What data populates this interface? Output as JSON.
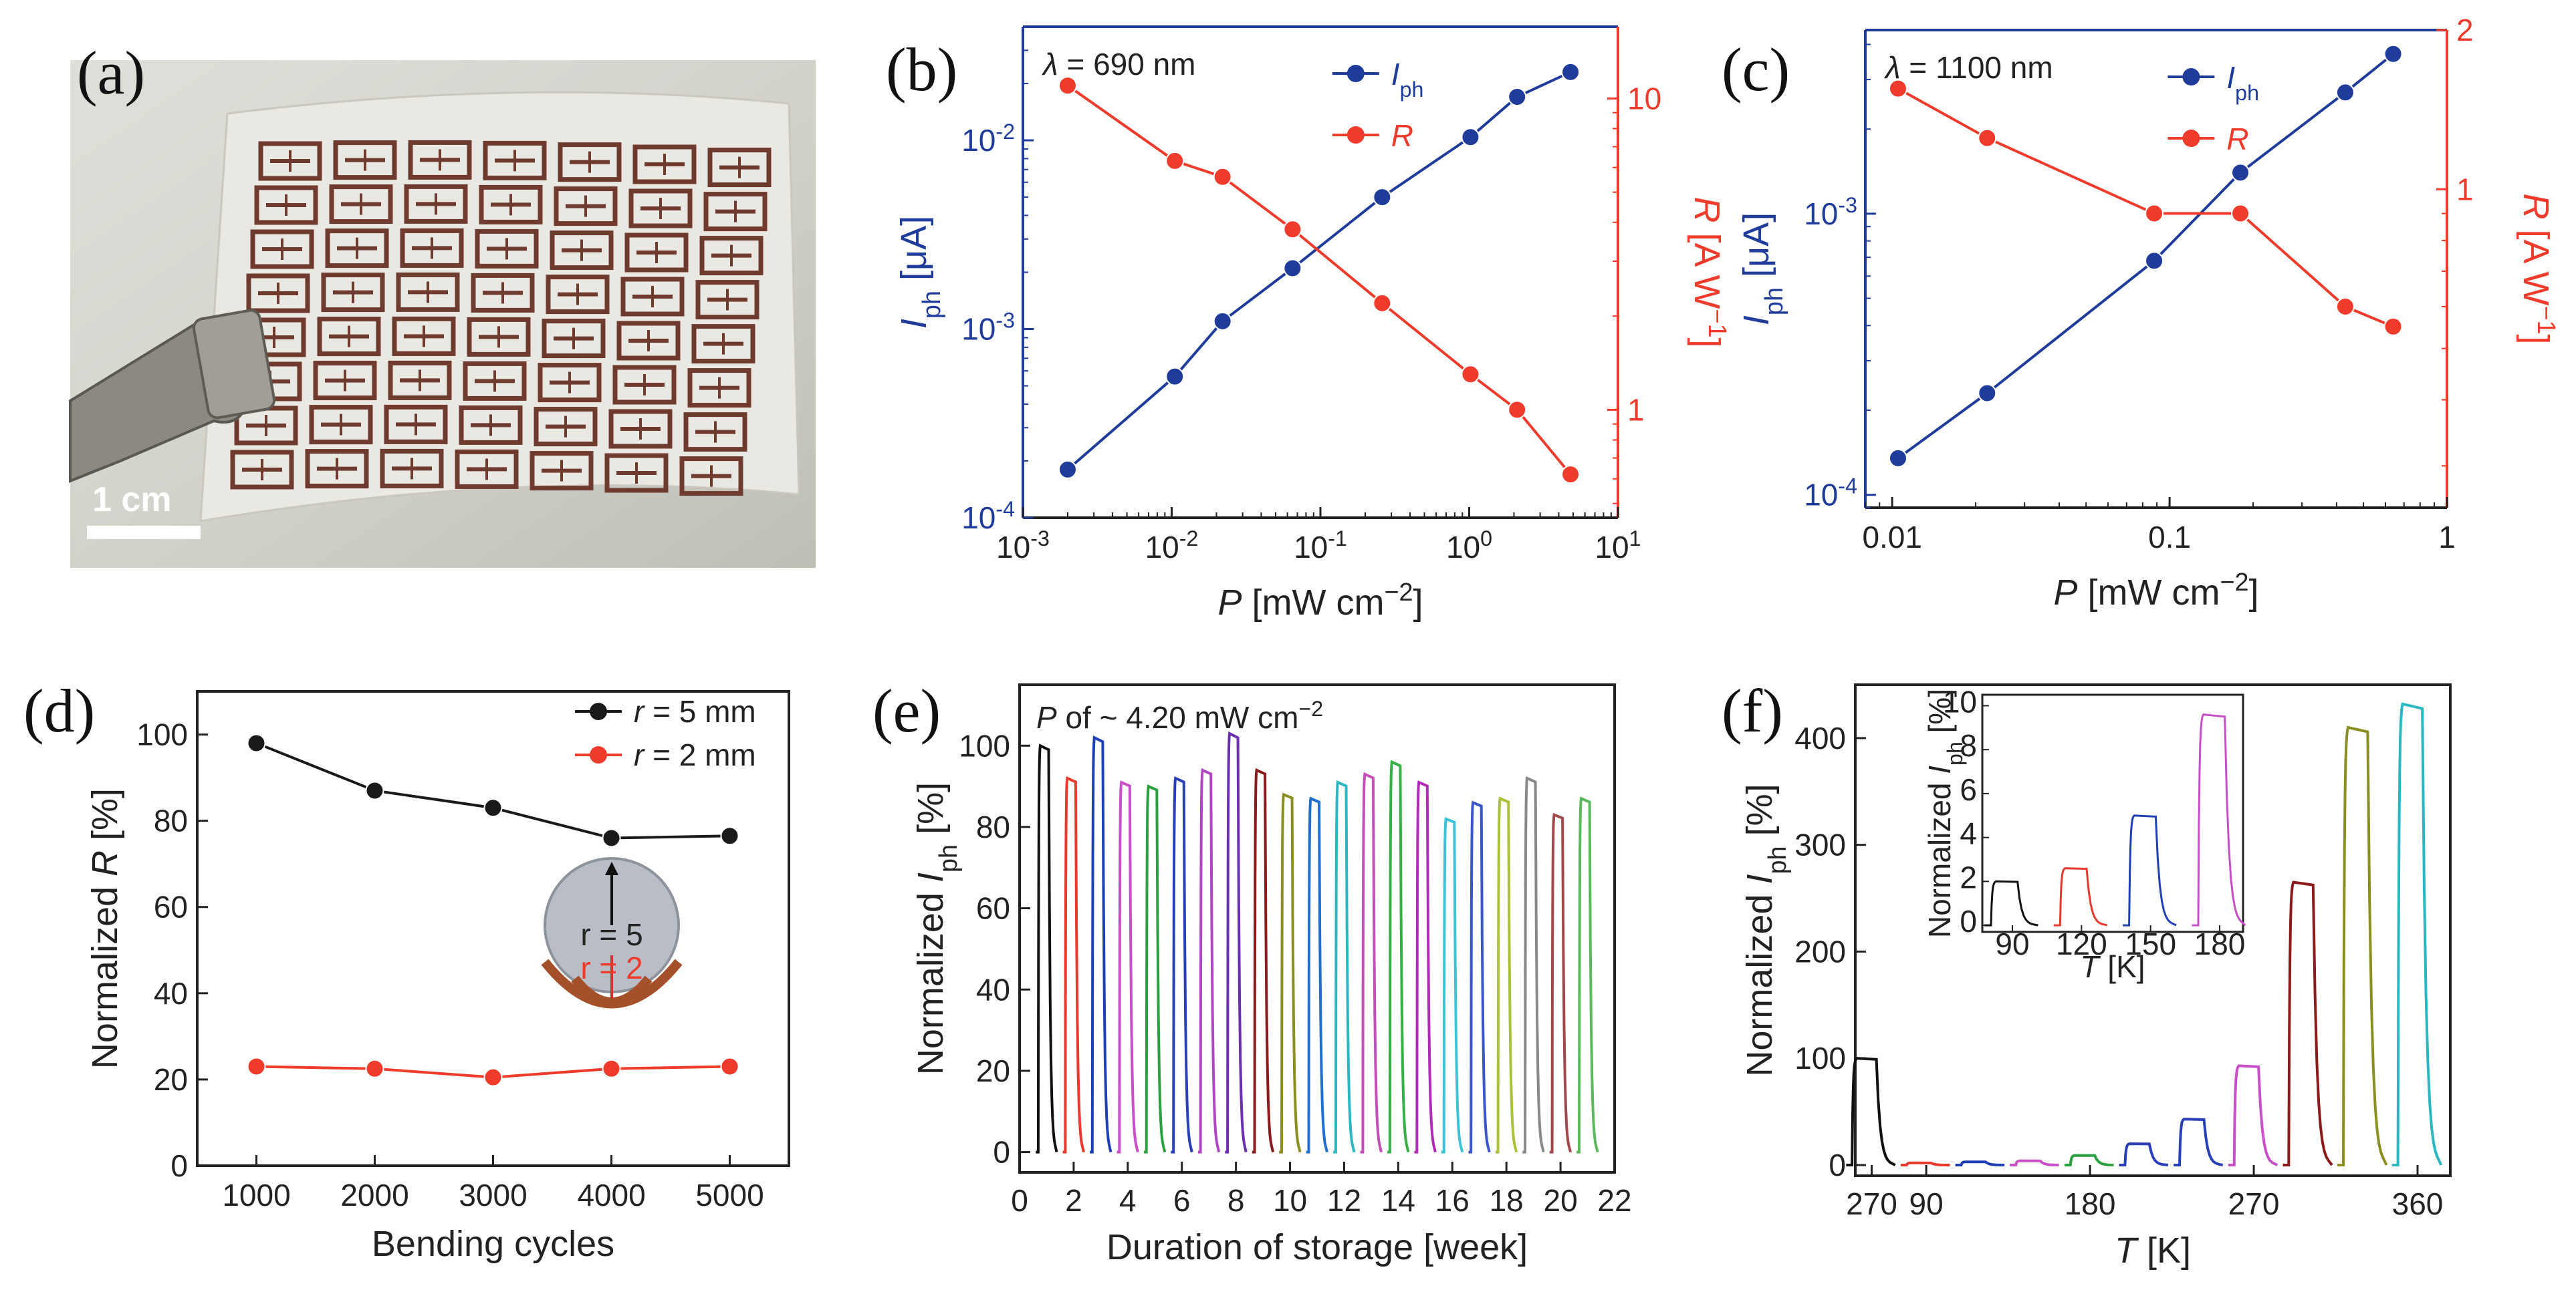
{
  "colors": {
    "blue": "#1f3c9a",
    "red": "#ef3b2c",
    "black": "#1a1a1a"
  },
  "panel_labels": [
    "(a)",
    "(b)",
    "(c)",
    "(d)",
    "(e)",
    "(f)"
  ],
  "photo": {
    "scale_label": "1 cm",
    "description_icon": "flexible-photodetector-array-photo"
  },
  "chart_data": [
    {
      "id": "b",
      "type": "line",
      "title": "",
      "annotation_html": "λ = 690 nm",
      "annotation": {
        "symbol": "λ",
        "text": " = 690 nm"
      },
      "xlabel": {
        "var": "P",
        "rest": " [mW cm",
        "sup": "−2",
        "end": "]"
      },
      "ylabel_left": {
        "var": "I",
        "sub": "ph",
        "rest": " [μA]"
      },
      "ylabel_right": {
        "var": "R",
        "rest": " [A W",
        "sup": "−1",
        "end": "]"
      },
      "xscale": "log",
      "xlim": [
        0.001,
        10
      ],
      "x_ticks": [
        {
          "b": "10",
          "e": "-3"
        },
        {
          "b": "10",
          "e": "-2"
        },
        {
          "b": "10",
          "e": "-1"
        },
        {
          "b": "10",
          "e": "0"
        },
        {
          "b": "10",
          "e": "1"
        }
      ],
      "yleft_ticks": [
        {
          "b": "10",
          "e": "-4"
        },
        {
          "b": "10",
          "e": "-3"
        },
        {
          "b": "10",
          "e": "-2"
        }
      ],
      "yright_ticks": [
        "1",
        "10"
      ],
      "legend": [
        {
          "var": "I",
          "sub": "ph"
        },
        {
          "var": "R",
          "sub": ""
        }
      ],
      "series": [
        {
          "name": "Iph",
          "axis": "left",
          "ylim": [
            0.0001,
            0.04
          ],
          "x": [
            0.002,
            0.0105,
            0.022,
            0.065,
            0.26,
            1.02,
            2.1,
            4.8
          ],
          "y": [
            0.00018,
            0.00056,
            0.0011,
            0.0021,
            0.005,
            0.0104,
            0.017,
            0.023
          ]
        },
        {
          "name": "R",
          "axis": "right",
          "ylim": [
            0.45,
            17
          ],
          "x": [
            0.002,
            0.0105,
            0.022,
            0.065,
            0.26,
            1.02,
            2.1,
            4.8
          ],
          "y": [
            11.0,
            6.3,
            5.6,
            3.8,
            2.2,
            1.3,
            1.0,
            0.62
          ]
        }
      ]
    },
    {
      "id": "c",
      "type": "line",
      "annotation": {
        "symbol": "λ",
        "text": " = 1100 nm"
      },
      "xlabel": {
        "var": "P",
        "rest": " [mW cm",
        "sup": "−2",
        "end": "]"
      },
      "ylabel_left": {
        "var": "I",
        "sub": "ph",
        "rest": " [μA]"
      },
      "ylabel_right": {
        "var": "R",
        "rest": " [A W",
        "sup": "−1",
        "end": "]"
      },
      "xscale": "log",
      "xlim": [
        0.008,
        1
      ],
      "x_ticks": [
        {
          "v": 0.01,
          "t": "0.01"
        },
        {
          "v": 0.1,
          "t": "0.1"
        },
        {
          "v": 1,
          "t": "1"
        }
      ],
      "yleft_ticks": [
        {
          "b": "10",
          "e": "-4"
        },
        {
          "b": "10",
          "e": "-3"
        }
      ],
      "yright_ticks": [
        "1",
        "2"
      ],
      "legend": [
        {
          "var": "I",
          "sub": "ph"
        },
        {
          "var": "R",
          "sub": ""
        }
      ],
      "series": [
        {
          "name": "Iph",
          "axis": "left",
          "ylim": [
            9e-05,
            0.0045
          ],
          "x": [
            0.0105,
            0.022,
            0.088,
            0.18,
            0.43,
            0.64
          ],
          "y": [
            0.000135,
            0.00023,
            0.00068,
            0.0014,
            0.0027,
            0.0037
          ]
        },
        {
          "name": "R",
          "axis": "right",
          "ylim": [
            0.25,
            2.0
          ],
          "x": [
            0.0105,
            0.022,
            0.088,
            0.18,
            0.43,
            0.64
          ],
          "y": [
            1.55,
            1.25,
            0.9,
            0.9,
            0.6,
            0.55
          ]
        }
      ]
    },
    {
      "id": "d",
      "type": "line",
      "xlabel": "Bending cycles",
      "ylabel": {
        "pre": "Normalized ",
        "var": "R",
        "rest": " [%]"
      },
      "xlim": [
        500,
        5500
      ],
      "ylim": [
        0,
        110
      ],
      "x_ticks": [
        1000,
        2000,
        3000,
        4000,
        5000
      ],
      "y_ticks": [
        0,
        20,
        40,
        60,
        80,
        100
      ],
      "legend": [
        {
          "pre": "r",
          "rest": " = 5 mm"
        },
        {
          "pre": "r",
          "rest": " = 2 mm"
        }
      ],
      "inset_labels": {
        "big": "r = 5",
        "small": "r = 2"
      },
      "series": [
        {
          "name": "r = 5 mm",
          "color": "#1a1a1a",
          "x": [
            1000,
            2000,
            3000,
            4000,
            5000
          ],
          "y": [
            98,
            87,
            83,
            76,
            76.5
          ]
        },
        {
          "name": "r = 2 mm",
          "color": "#ef3b2c",
          "x": [
            1000,
            2000,
            3000,
            4000,
            5000
          ],
          "y": [
            23,
            22.5,
            20.5,
            22.5,
            23
          ]
        }
      ]
    },
    {
      "id": "e",
      "type": "line",
      "annotation": {
        "var": "P",
        "rest": " of ~ 4.20 mW cm",
        "sup": "−2"
      },
      "xlabel": "Duration of storage [week]",
      "ylabel": {
        "pre": "Normalized ",
        "var": "I",
        "sub": "ph",
        "rest": " [%]"
      },
      "xlim": [
        0,
        22
      ],
      "ylim": [
        -5,
        115
      ],
      "x_ticks": [
        0,
        2,
        4,
        6,
        8,
        10,
        12,
        14,
        16,
        18,
        20,
        22
      ],
      "y_ticks": [
        0,
        20,
        40,
        60,
        80,
        100
      ],
      "pulses": [
        {
          "week": 1,
          "peak": 100,
          "color": "#111111"
        },
        {
          "week": 2,
          "peak": 92,
          "color": "#e8392e"
        },
        {
          "week": 3,
          "peak": 102,
          "color": "#1f3fb5"
        },
        {
          "week": 4,
          "peak": 91,
          "color": "#c94fc9"
        },
        {
          "week": 5,
          "peak": 90,
          "color": "#2aa040"
        },
        {
          "week": 6,
          "peak": 92,
          "color": "#2940b8"
        },
        {
          "week": 7,
          "peak": 94,
          "color": "#b146c4"
        },
        {
          "week": 8,
          "peak": 103,
          "color": "#6b2fb0"
        },
        {
          "week": 9,
          "peak": 94,
          "color": "#8b1a1a"
        },
        {
          "week": 10,
          "peak": 88,
          "color": "#8a8f1f"
        },
        {
          "week": 11,
          "peak": 87,
          "color": "#1e6fd0"
        },
        {
          "week": 12,
          "peak": 91,
          "color": "#2ab7c2"
        },
        {
          "week": 13,
          "peak": 93,
          "color": "#c44fb8"
        },
        {
          "week": 14,
          "peak": 96,
          "color": "#35b045"
        },
        {
          "week": 15,
          "peak": 91,
          "color": "#b12bb8"
        },
        {
          "week": 16,
          "peak": 82,
          "color": "#3cc4d6"
        },
        {
          "week": 17,
          "peak": 86,
          "color": "#3a56c8"
        },
        {
          "week": 18,
          "peak": 87,
          "color": "#a8c23a"
        },
        {
          "week": 19,
          "peak": 92,
          "color": "#888888"
        },
        {
          "week": 20,
          "peak": 83,
          "color": "#a0484a"
        },
        {
          "week": 21,
          "peak": 87,
          "color": "#5cb85c"
        }
      ]
    },
    {
      "id": "f",
      "type": "line",
      "xlabel": {
        "var": "T",
        "rest": " [K]"
      },
      "ylabel": {
        "pre": "Normalized ",
        "var": "I",
        "sub": "ph",
        "rest": " [%]"
      },
      "ylim": [
        -10,
        450
      ],
      "x_tick_labels": [
        "270",
        "90",
        "180",
        "270",
        "360"
      ],
      "y_ticks": [
        0,
        100,
        200,
        300,
        400
      ],
      "pulses": [
        {
          "slot": 0,
          "peak": 100,
          "color": "#111111"
        },
        {
          "slot": 1,
          "peak": 2,
          "color": "#e8392e"
        },
        {
          "slot": 2,
          "peak": 3,
          "color": "#1f3fb5"
        },
        {
          "slot": 3,
          "peak": 4,
          "color": "#c94fc9"
        },
        {
          "slot": 4,
          "peak": 9,
          "color": "#2aa040"
        },
        {
          "slot": 5,
          "peak": 20,
          "color": "#2940b8"
        },
        {
          "slot": 6,
          "peak": 43,
          "color": "#2940b8"
        },
        {
          "slot": 7,
          "peak": 93,
          "color": "#c94fc9"
        },
        {
          "slot": 8,
          "peak": 265,
          "color": "#8b1a1a"
        },
        {
          "slot": 9,
          "peak": 410,
          "color": "#8a8f1f"
        },
        {
          "slot": 10,
          "peak": 432,
          "color": "#2ab7c2"
        }
      ],
      "inset": {
        "ylabel": {
          "pre": "Normalized ",
          "var": "I",
          "sub": "ph",
          "rest": " [%]"
        },
        "xlabel": {
          "var": "T",
          "rest": " [K]"
        },
        "ylim": [
          -0.3,
          10.5
        ],
        "y_ticks": [
          0,
          2,
          4,
          6,
          8,
          10
        ],
        "x_ticks": [
          "90",
          "120",
          "150",
          "180"
        ],
        "pulses": [
          {
            "label": "90",
            "peak": 2.0,
            "color": "#111111"
          },
          {
            "label": "120",
            "peak": 2.6,
            "color": "#e8392e"
          },
          {
            "label": "150",
            "peak": 5.0,
            "color": "#1f3fb5"
          },
          {
            "label": "180",
            "peak": 9.6,
            "color": "#c94fc9"
          }
        ]
      }
    }
  ]
}
